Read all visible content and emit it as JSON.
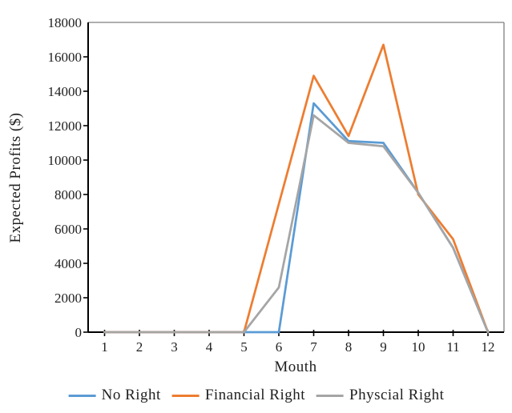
{
  "chart_data": {
    "type": "line",
    "title": "",
    "xlabel": "Mouth",
    "ylabel": "Expected Profits ($)",
    "x": [
      1,
      2,
      3,
      4,
      5,
      6,
      7,
      8,
      9,
      10,
      11,
      12
    ],
    "ylim": [
      0,
      18000
    ],
    "ytick_step": 2000,
    "grid": false,
    "legend_position": "bottom",
    "plot_border": true,
    "axis_color": "#000000",
    "border_color": "#7f7f7f",
    "series": [
      {
        "name": "No Right",
        "color": "#5B9BD5",
        "values": [
          0,
          0,
          0,
          0,
          0,
          0,
          13300,
          11100,
          11000,
          8100,
          4900,
          0
        ]
      },
      {
        "name": "Financial Right",
        "color": "#ED7D31",
        "values": [
          0,
          0,
          0,
          0,
          0,
          7450,
          14900,
          11400,
          16700,
          8000,
          5400,
          0
        ]
      },
      {
        "name": "Physcial Right",
        "color": "#A5A5A5",
        "values": [
          0,
          0,
          0,
          0,
          0,
          2600,
          12600,
          11000,
          10800,
          8100,
          4900,
          0
        ]
      }
    ]
  }
}
